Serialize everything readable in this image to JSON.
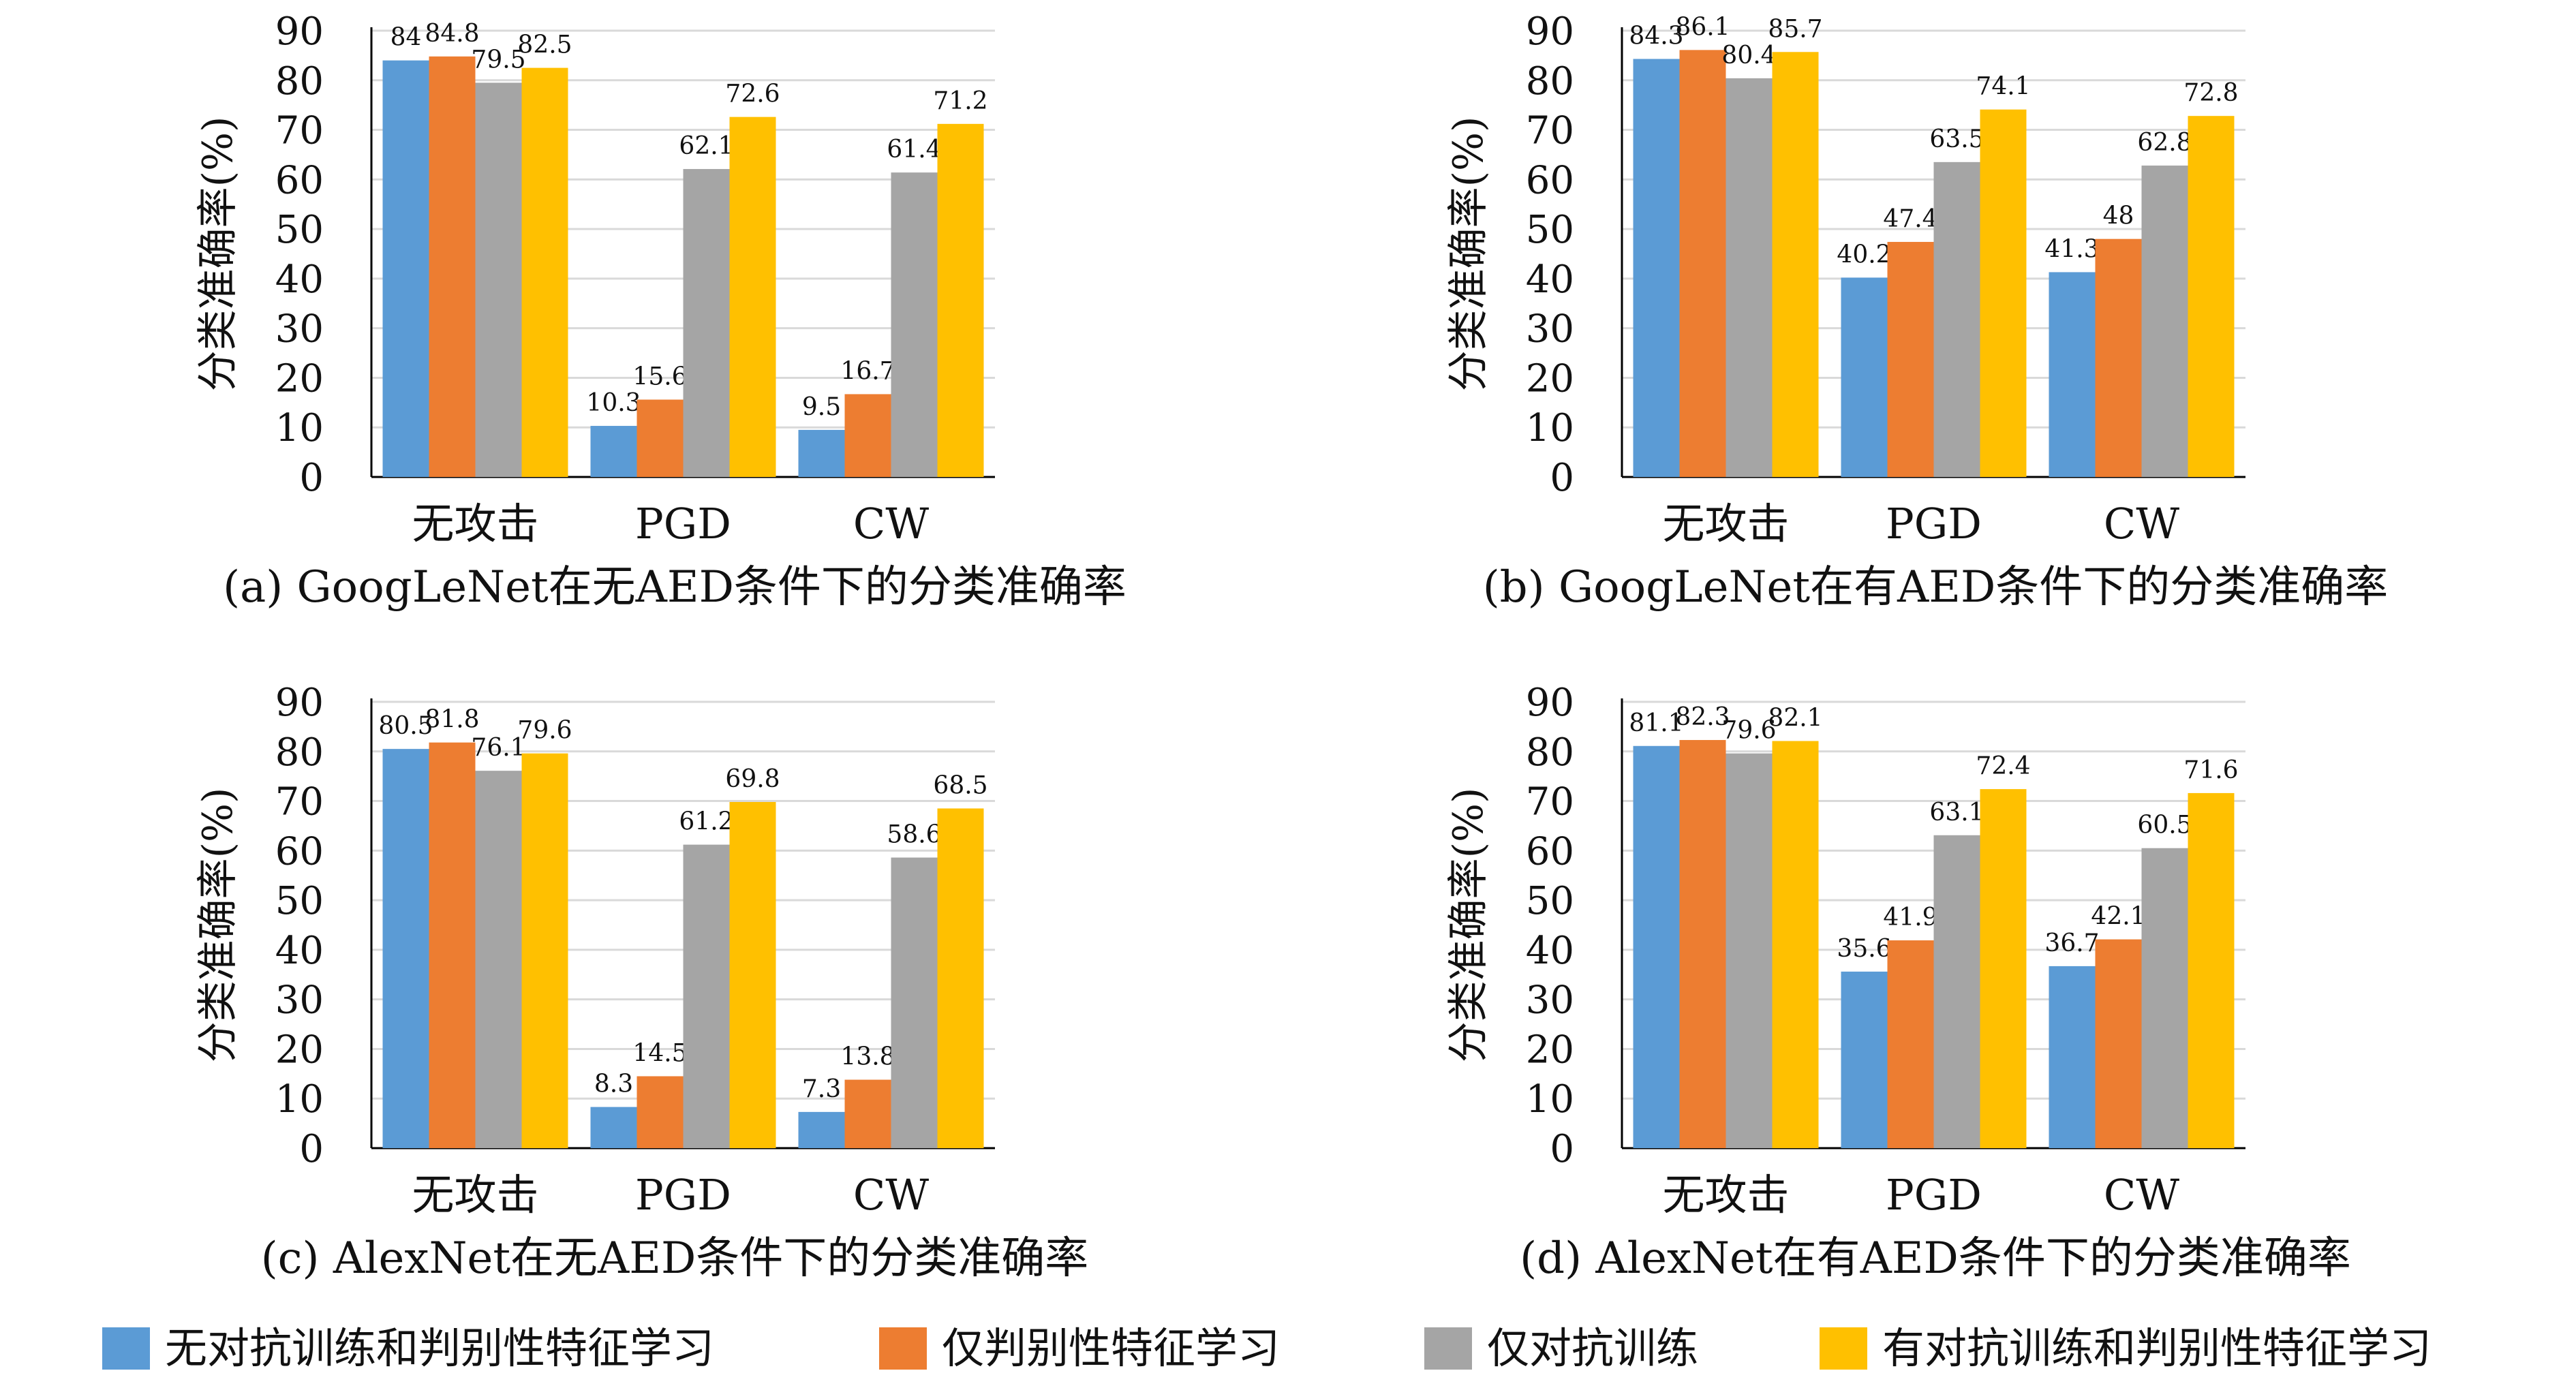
{
  "colors": {
    "series": [
      "#5b9bd5",
      "#ed7d31",
      "#a5a5a5",
      "#ffc000"
    ],
    "grid": "#d9d9d9",
    "axis": "#000000"
  },
  "legend": {
    "placement": "bottom",
    "entries": [
      "无对抗训练和判别性特征学习",
      "仅判别性特征学习",
      "仅对抗训练",
      "有对抗训练和判别性特征学习"
    ]
  },
  "chart_data": [
    {
      "type": "bar",
      "caption": "(a) GoogLeNet在无AED条件下的分类准确率",
      "ylabel": "分类准确率(%)",
      "categories": [
        "无攻击",
        "PGD",
        "CW"
      ],
      "yticks": [
        0,
        10,
        20,
        30,
        40,
        50,
        60,
        70,
        80,
        90
      ],
      "ylim": [
        0,
        90
      ],
      "grid": true,
      "series": [
        {
          "name": "无对抗训练和判别性特征学习",
          "values": [
            84.0,
            10.3,
            9.5
          ]
        },
        {
          "name": "仅判别性特征学习",
          "values": [
            84.8,
            15.6,
            16.7
          ]
        },
        {
          "name": "仅对抗训练",
          "values": [
            79.5,
            62.1,
            61.4
          ]
        },
        {
          "name": "有对抗训练和判别性特征学习",
          "values": [
            82.5,
            72.6,
            71.2
          ]
        }
      ]
    },
    {
      "type": "bar",
      "caption": "(b) GoogLeNet在有AED条件下的分类准确率",
      "ylabel": "分类准确率(%)",
      "categories": [
        "无攻击",
        "PGD",
        "CW"
      ],
      "yticks": [
        0,
        10,
        20,
        30,
        40,
        50,
        60,
        70,
        80,
        90
      ],
      "ylim": [
        0,
        90
      ],
      "grid": true,
      "series": [
        {
          "name": "无对抗训练和判别性特征学习",
          "values": [
            84.3,
            40.2,
            41.3
          ]
        },
        {
          "name": "仅判别性特征学习",
          "values": [
            86.1,
            47.4,
            48.0
          ]
        },
        {
          "name": "仅对抗训练",
          "values": [
            80.4,
            63.5,
            62.8
          ]
        },
        {
          "name": "有对抗训练和判别性特征学习",
          "values": [
            85.7,
            74.1,
            72.8
          ]
        }
      ]
    },
    {
      "type": "bar",
      "caption": "(c) AlexNet在无AED条件下的分类准确率",
      "ylabel": "分类准确率(%)",
      "categories": [
        "无攻击",
        "PGD",
        "CW"
      ],
      "yticks": [
        0,
        10,
        20,
        30,
        40,
        50,
        60,
        70,
        80,
        90
      ],
      "ylim": [
        0,
        90
      ],
      "grid": true,
      "series": [
        {
          "name": "无对抗训练和判别性特征学习",
          "values": [
            80.5,
            8.3,
            7.3
          ]
        },
        {
          "name": "仅判别性特征学习",
          "values": [
            81.8,
            14.5,
            13.8
          ]
        },
        {
          "name": "仅对抗训练",
          "values": [
            76.1,
            61.2,
            58.6
          ]
        },
        {
          "name": "有对抗训练和判别性特征学习",
          "values": [
            79.6,
            69.8,
            68.5
          ]
        }
      ]
    },
    {
      "type": "bar",
      "caption": "(d) AlexNet在有AED条件下的分类准确率",
      "ylabel": "分类准确率(%)",
      "categories": [
        "无攻击",
        "PGD",
        "CW"
      ],
      "yticks": [
        0,
        10,
        20,
        30,
        40,
        50,
        60,
        70,
        80,
        90
      ],
      "ylim": [
        0,
        90
      ],
      "grid": true,
      "series": [
        {
          "name": "无对抗训练和判别性特征学习",
          "values": [
            81.1,
            35.6,
            36.7
          ]
        },
        {
          "name": "仅判别性特征学习",
          "values": [
            82.3,
            41.9,
            42.1
          ]
        },
        {
          "name": "仅对抗训练",
          "values": [
            79.6,
            63.1,
            60.5
          ]
        },
        {
          "name": "有对抗训练和判别性特征学习",
          "values": [
            82.1,
            72.4,
            71.6
          ]
        }
      ]
    }
  ]
}
